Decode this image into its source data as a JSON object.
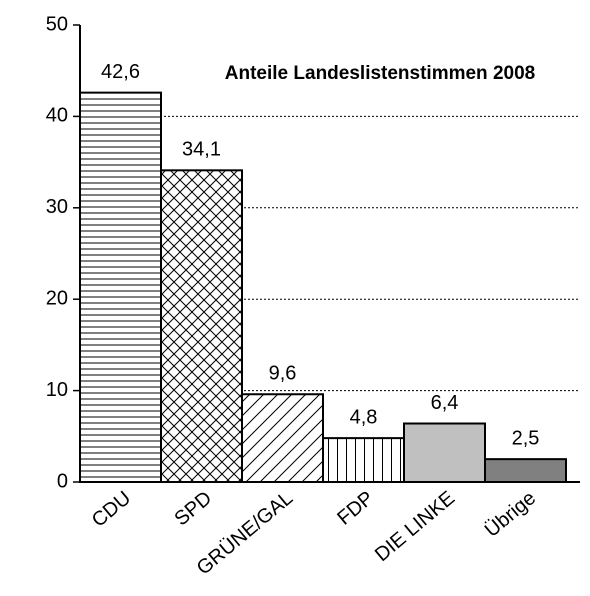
{
  "chart_data": {
    "type": "bar",
    "title": "Anteile Landeslistenstimmen 2008",
    "categories": [
      "CDU",
      "SPD",
      "GRÜNE/GAL",
      "FDP",
      "DIE LINKE",
      "Übrige"
    ],
    "values": [
      42.6,
      34.1,
      9.6,
      4.8,
      6.4,
      2.5
    ],
    "value_labels": [
      "42,6",
      "34,1",
      "9,6",
      "4,8",
      "6,4",
      "2,5"
    ],
    "patterns": [
      "horizontal",
      "crosshatch",
      "diagonal",
      "vertical",
      "solid",
      "solid"
    ],
    "colors": [
      "#ffffff",
      "#ffffff",
      "#ffffff",
      "#ffffff",
      "#c0c0c0",
      "#808080"
    ],
    "ylim": [
      0,
      50
    ],
    "yticks": [
      0,
      10,
      20,
      30,
      40,
      50
    ],
    "grid": true
  }
}
